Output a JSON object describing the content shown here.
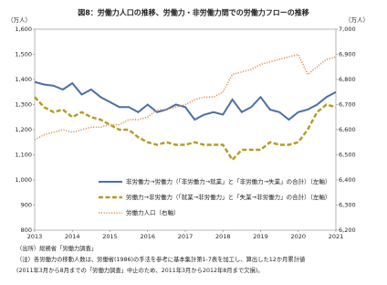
{
  "chart_data": {
    "type": "line",
    "title": "図8：労働力人口の推移、労働力・非労働力間での労働力フローの推移",
    "y_unit": "（万人）",
    "y2_unit": "（万人）",
    "x": [
      2013,
      2013.25,
      2013.5,
      2013.75,
      2014,
      2014.25,
      2014.5,
      2014.75,
      2015,
      2015.25,
      2015.5,
      2015.75,
      2016,
      2016.25,
      2016.5,
      2016.75,
      2017,
      2017.25,
      2017.5,
      2017.75,
      2018,
      2018.25,
      2018.5,
      2018.75,
      2019,
      2019.25,
      2019.5,
      2019.75,
      2020,
      2020.25,
      2020.5,
      2020.75,
      2021
    ],
    "xlim": [
      2013,
      2021
    ],
    "xticks": [
      2013,
      2014,
      2015,
      2016,
      2017,
      2018,
      2019,
      2020,
      2021
    ],
    "ylim": [
      800,
      1600
    ],
    "yticks": [
      800,
      900,
      {
        "value": 1000,
        "label": "1,000"
      },
      {
        "value": 1100,
        "label": "1,100"
      },
      {
        "value": 1200,
        "label": "1,200"
      },
      {
        "value": 1300,
        "label": "1,300"
      },
      {
        "value": 1400,
        "label": "1,400"
      },
      {
        "value": 1500,
        "label": "1,500"
      },
      {
        "value": 1600,
        "label": "1,600"
      }
    ],
    "y2lim": [
      6200,
      7000
    ],
    "y2ticks": [
      {
        "value": 6200,
        "label": "6,200"
      },
      {
        "value": 6300,
        "label": "6,300"
      },
      {
        "value": 6400,
        "label": "6,400"
      },
      {
        "value": 6500,
        "label": "6,500"
      },
      {
        "value": 6600,
        "label": "6,600"
      },
      {
        "value": 6700,
        "label": "6,700"
      },
      {
        "value": 6800,
        "label": "6,800"
      },
      {
        "value": 6900,
        "label": "6,900"
      },
      {
        "value": 7000,
        "label": "7,000"
      }
    ],
    "series": [
      {
        "name": "非労働力→労働力（「非労働力→就業」と「非労働力→失業」の合計）（左軸）",
        "color": "#4a6fa5",
        "line_style": "solid",
        "values": [
          1390,
          1380,
          1375,
          1360,
          1385,
          1340,
          1360,
          1330,
          1310,
          1290,
          1290,
          1270,
          1300,
          1270,
          1280,
          1300,
          1290,
          1240,
          1260,
          1270,
          1260,
          1320,
          1270,
          1290,
          1330,
          1280,
          1270,
          1240,
          1270,
          1280,
          1300,
          1330,
          1350
        ]
      },
      {
        "name": "労働力→非労働力（「就業→非労働力」と「失業→非労働力」の合計）（左軸）",
        "color": "#b59a24",
        "line_style": "dashed",
        "values": [
          1330,
          1290,
          1270,
          1280,
          1250,
          1270,
          1250,
          1240,
          1220,
          1200,
          1200,
          1170,
          1150,
          1140,
          1150,
          1140,
          1140,
          1150,
          1140,
          1140,
          1140,
          1080,
          1120,
          1120,
          1120,
          1150,
          1140,
          1140,
          1150,
          1200,
          1270,
          1300,
          1290
        ]
      },
      {
        "name": "労働力人口（右軸）",
        "color": "#e09050",
        "line_style": "dotted",
        "axis": "y2",
        "values": [
          6560,
          6580,
          6590,
          6600,
          6590,
          6600,
          6610,
          6610,
          6620,
          6620,
          6640,
          6640,
          6650,
          6680,
          6680,
          6690,
          6700,
          6720,
          6730,
          6730,
          6750,
          6820,
          6830,
          6840,
          6860,
          6870,
          6880,
          6890,
          6900,
          6820,
          6850,
          6880,
          6890
        ]
      }
    ],
    "notes": [
      "（出所）総務省「労働力調査」",
      "（注）各労働力の移動人数は、労働省(1986)の手法を参考に基本集計第1-7表を加工し、算出した12か月累計値",
      "(2011年3月から8月までの「労働力調査」中止のため、2011年3月から2012年8月まで欠損)。"
    ]
  }
}
